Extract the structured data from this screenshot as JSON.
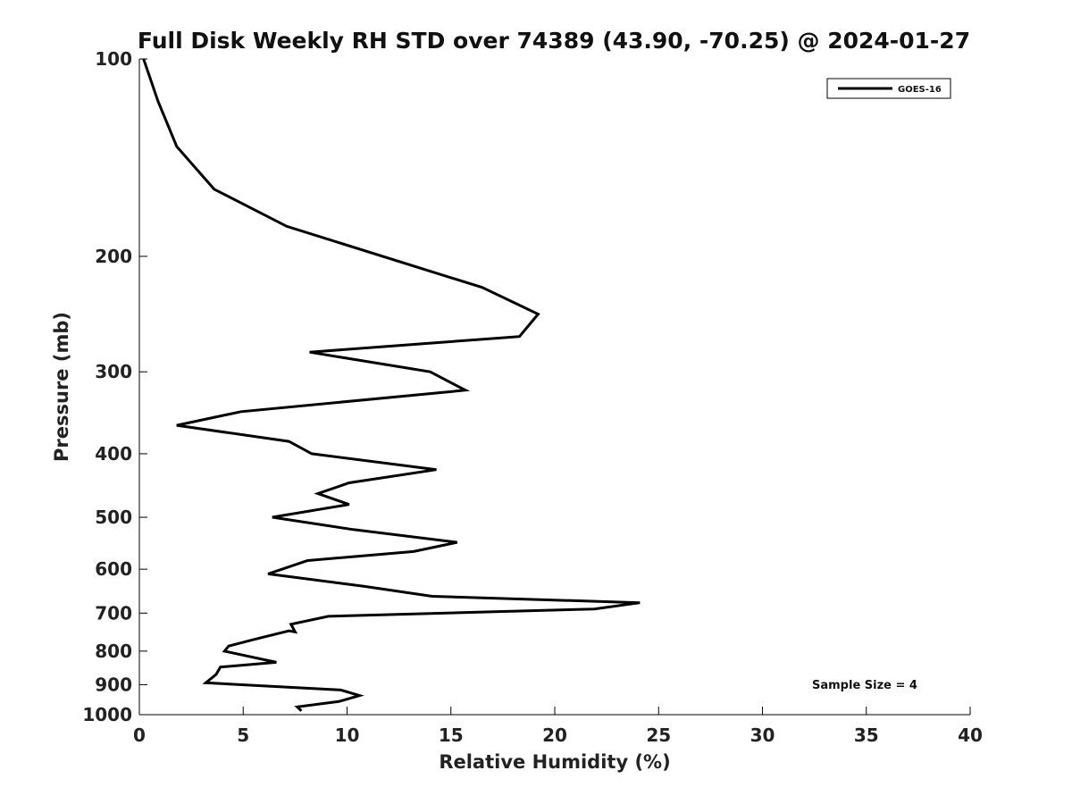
{
  "chart_data": {
    "type": "line",
    "title": "Full Disk Weekly RH STD over 74389 (43.90, -70.25) @ 2024-01-27",
    "xlabel": "Relative Humidity (%)",
    "ylabel": "Pressure (mb)",
    "xlim": [
      0,
      40
    ],
    "ylim": [
      100,
      1000
    ],
    "y_scale": "log",
    "y_inverted": true,
    "x_ticks": [
      0,
      5,
      10,
      15,
      20,
      25,
      30,
      35,
      40
    ],
    "x_tick_labels": [
      "0",
      "5",
      "10",
      "15",
      "20",
      "25",
      "30",
      "35",
      "40"
    ],
    "y_ticks": [
      100,
      200,
      300,
      400,
      500,
      600,
      700,
      800,
      900,
      1000
    ],
    "y_tick_labels": [
      "100",
      "200",
      "300",
      "400",
      "500",
      "600",
      "700",
      "800",
      "900",
      "1000"
    ],
    "legend_position": "top-right",
    "annotation": "Sample Size = 4",
    "series": [
      {
        "name": "GOES-16",
        "color": "#000000",
        "x": [
          0.2,
          0.9,
          1.8,
          3.6,
          7.1,
          16.5,
          19.2,
          18.3,
          8.2,
          14.0,
          15.7,
          4.9,
          1.8,
          7.2,
          8.3,
          14.3,
          10.1,
          8.6,
          10.1,
          6.4,
          10.3,
          15.3,
          13.2,
          8.1,
          6.2,
          10.8,
          14.1,
          24.1,
          21.9,
          9.1,
          7.3,
          7.5,
          7.2,
          5.5,
          4.3,
          4.1,
          6.6,
          3.9,
          3.7,
          3.2,
          9.7,
          10.6,
          9.6,
          7.6,
          7.8
        ],
        "y": [
          100,
          116,
          136,
          158,
          180,
          223,
          245,
          265,
          280,
          300,
          320,
          345,
          362,
          383,
          400,
          423,
          443,
          460,
          478,
          500,
          522,
          546,
          564,
          582,
          610,
          637,
          660,
          675,
          690,
          708,
          728,
          748,
          745,
          768,
          786,
          800,
          832,
          846,
          868,
          894,
          917,
          935,
          955,
          973,
          987
        ]
      }
    ]
  }
}
